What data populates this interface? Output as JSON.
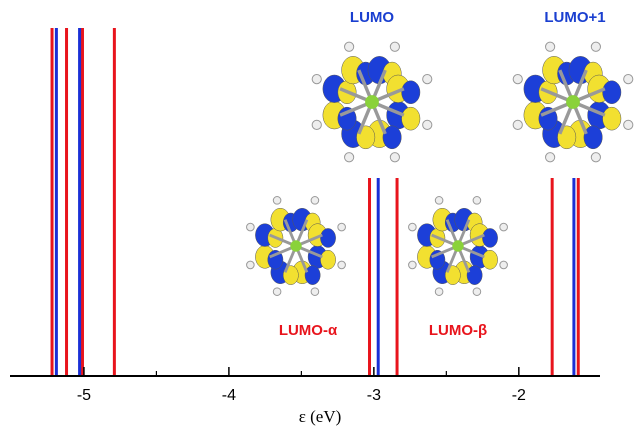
{
  "chart_data": {
    "type": "level-lines",
    "xlabel": "ε (eV)",
    "xlim": [
      -5.51,
      -1.44
    ],
    "xticks": [
      -5,
      -4,
      -3,
      -2
    ],
    "xminorticks": [
      -4.5,
      -3.5,
      -2.5
    ],
    "series": [
      {
        "color": "#e8141c",
        "values": [
          -5.22,
          -5.12,
          -5.01,
          -4.79,
          -3.03,
          -2.84,
          -1.77,
          -1.59
        ]
      },
      {
        "color": "#1a2fd6",
        "values": [
          -5.19,
          -5.03,
          -2.97,
          -1.62
        ]
      }
    ],
    "annotations": [
      {
        "text": "LUMO",
        "color": "#1a3fd0"
      },
      {
        "text": "LUMO+1",
        "color": "#1a3fd0"
      },
      {
        "text": "LUMO-α",
        "color": "#e8141c"
      },
      {
        "text": "LUMO-β",
        "color": "#e8141c"
      }
    ]
  }
}
